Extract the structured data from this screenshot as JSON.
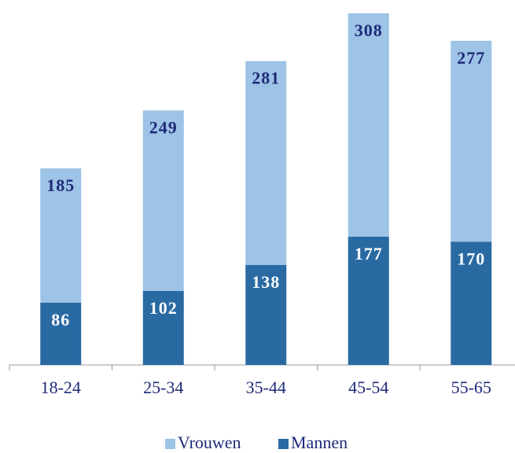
{
  "chart_data": {
    "type": "stacked_bar",
    "categories": [
      "18-24",
      "25-34",
      "35-44",
      "45-54",
      "55-65"
    ],
    "series": [
      {
        "name": "Mannen",
        "color": "#2a6aa3",
        "values": [
          86,
          102,
          138,
          177,
          170
        ]
      },
      {
        "name": "Vrouwen",
        "color": "#9dc3e6",
        "values": [
          185,
          249,
          281,
          308,
          277
        ]
      }
    ],
    "legend": "bottom"
  }
}
